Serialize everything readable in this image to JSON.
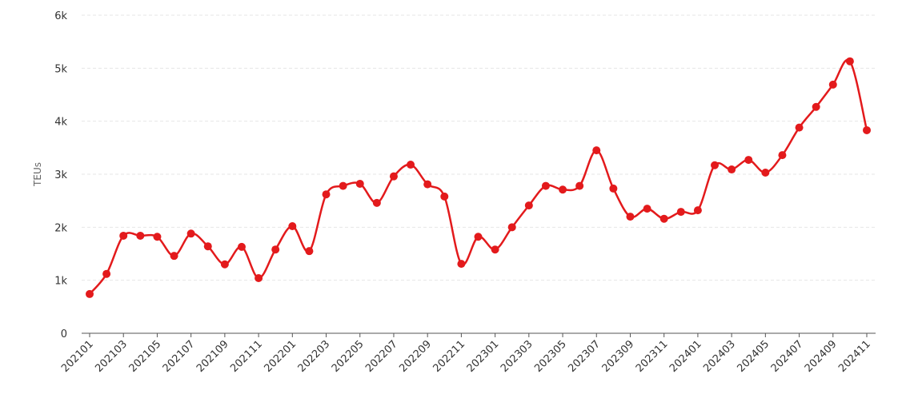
{
  "chart_data": {
    "type": "line",
    "title": "",
    "xlabel": "",
    "ylabel": "TEUs",
    "ylim": [
      0,
      6000
    ],
    "yticks": [
      0,
      1000,
      2000,
      3000,
      4000,
      5000,
      6000
    ],
    "ytick_labels": [
      "0",
      "1k",
      "2k",
      "3k",
      "4k",
      "5k",
      "6k"
    ],
    "grid": true,
    "color": "#e31a1c",
    "x": [
      "202101",
      "202102",
      "202103",
      "202104",
      "202105",
      "202106",
      "202107",
      "202108",
      "202109",
      "202110",
      "202111",
      "202112",
      "202201",
      "202202",
      "202203",
      "202204",
      "202205",
      "202206",
      "202207",
      "202208",
      "202209",
      "202210",
      "202211",
      "202212",
      "202301",
      "202302",
      "202303",
      "202304",
      "202305",
      "202306",
      "202307",
      "202308",
      "202309",
      "202310",
      "202311",
      "202312",
      "202401",
      "202402",
      "202403",
      "202404",
      "202405",
      "202406",
      "202407",
      "202408",
      "202409",
      "202410",
      "202411"
    ],
    "xtick_labels": [
      "202101",
      "202103",
      "202105",
      "202107",
      "202109",
      "202111",
      "202201",
      "202203",
      "202205",
      "202207",
      "202209",
      "202211",
      "202301",
      "202303",
      "202305",
      "202307",
      "202309",
      "202311",
      "202401",
      "202403",
      "202405",
      "202407",
      "202409",
      "202411"
    ],
    "series": [
      {
        "name": "TEUs",
        "values": [
          740,
          1120,
          1840,
          1840,
          1820,
          1460,
          1880,
          1640,
          1300,
          1630,
          1040,
          1580,
          2020,
          1550,
          2620,
          2780,
          2820,
          2460,
          2960,
          3180,
          2810,
          2580,
          1310,
          1820,
          1580,
          2000,
          2410,
          2780,
          2710,
          2780,
          3450,
          2730,
          2200,
          2350,
          2160,
          2290,
          2320,
          3170,
          3090,
          3270,
          3030,
          3360,
          3880,
          4270,
          4690,
          5130,
          3830
        ]
      }
    ]
  }
}
